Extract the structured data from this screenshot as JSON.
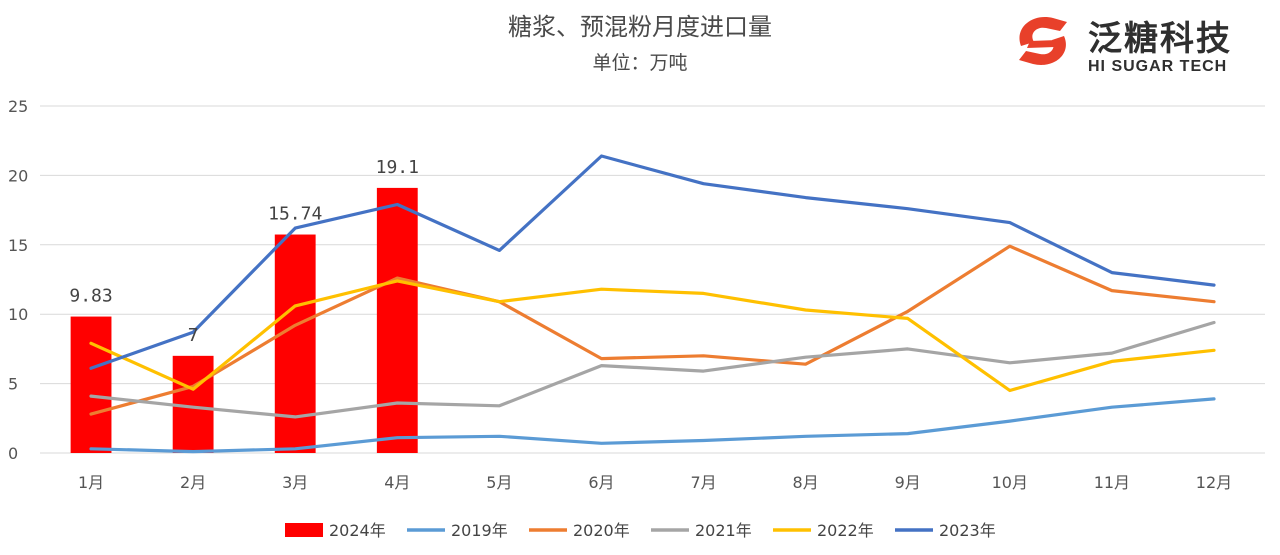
{
  "chart_data": {
    "type": "bar+line",
    "title": "糖浆、预混粉月度进口量",
    "subtitle": "单位：万吨",
    "categories": [
      "1月",
      "2月",
      "3月",
      "4月",
      "5月",
      "6月",
      "7月",
      "8月",
      "9月",
      "10月",
      "11月",
      "12月"
    ],
    "ylim": [
      0,
      25
    ],
    "yticks": [
      0,
      5,
      10,
      15,
      20,
      25
    ],
    "grid": true,
    "legend_position": "bottom",
    "bar_series": {
      "name": "2024年",
      "color": "#ff0000",
      "values": [
        9.83,
        7,
        15.74,
        19.1
      ],
      "labels": [
        "9.83",
        "7",
        "15.74",
        "19.1"
      ]
    },
    "series": [
      {
        "name": "2019年",
        "color": "#5b9bd5",
        "values": [
          0.3,
          0.1,
          0.3,
          1.1,
          1.2,
          0.7,
          0.9,
          1.2,
          1.4,
          2.3,
          3.3,
          3.9
        ]
      },
      {
        "name": "2020年",
        "color": "#ed7d31",
        "values": [
          2.8,
          4.8,
          9.2,
          12.6,
          10.9,
          6.8,
          7.0,
          6.4,
          10.2,
          14.9,
          11.7,
          10.9
        ]
      },
      {
        "name": "2021年",
        "color": "#a5a5a5",
        "values": [
          4.1,
          3.3,
          2.6,
          3.6,
          3.4,
          6.3,
          5.9,
          6.9,
          7.5,
          6.5,
          7.2,
          9.4
        ]
      },
      {
        "name": "2022年",
        "color": "#ffc000",
        "values": [
          7.9,
          4.6,
          10.6,
          12.4,
          10.9,
          11.8,
          11.5,
          10.3,
          9.7,
          4.5,
          6.6,
          7.4
        ]
      },
      {
        "name": "2023年",
        "color": "#4472c4",
        "values": [
          6.1,
          8.7,
          16.2,
          17.9,
          14.6,
          21.4,
          19.4,
          18.4,
          17.6,
          16.6,
          13.0,
          12.1
        ]
      }
    ]
  },
  "logo": {
    "name_cn": "泛糖科技",
    "name_en": "HI SUGAR TECH",
    "color": "#e8402a"
  }
}
